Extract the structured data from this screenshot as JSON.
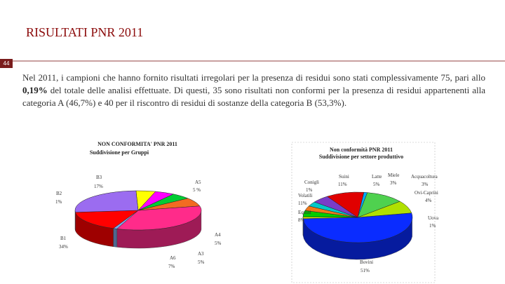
{
  "slide": {
    "title": "RISULTATI PNR 2011",
    "page_number": "44",
    "paragraph": {
      "part1": "Nel 2011, i campioni che hanno fornito risultati irregolari per la presenza di residui sono stati complessivamente 75, pari allo ",
      "highlight": "0,19%",
      "part2": " del totale delle analisi effettuate. Di questi, 35 sono risultati non conformi per la presenza di residui appartenenti alla categoria A (46,7%) e 40 per il riscontro di residui di sostanze della categoria B (53,3%)."
    }
  },
  "chart_data": [
    {
      "type": "pie",
      "title": "NON CONFORMITA' PNR 2011",
      "subtitle": "Suddivisione per Gruppi",
      "slices": [
        {
          "label": "A5",
          "value": 5,
          "display": "5 %",
          "color": "#ffff00"
        },
        {
          "label": "A4",
          "value": 5,
          "display": "5%",
          "color": "#ff00ff"
        },
        {
          "label": "A3",
          "value": 5,
          "display": "5%",
          "color": "#00cc33"
        },
        {
          "label": "A6",
          "value": 7,
          "display": "7%",
          "color": "#f26b21"
        },
        {
          "label": "B1",
          "value": 34,
          "display": "34%",
          "color": "#ff2b8a"
        },
        {
          "label": "B2",
          "value": 1,
          "display": "1%",
          "color": "#7ca6e8"
        },
        {
          "label": "B3",
          "value": 17,
          "display": "17%",
          "color": "#ff0000"
        },
        {
          "label": "",
          "value": 26,
          "display": "",
          "color": "#9b6cf0"
        }
      ]
    },
    {
      "type": "pie",
      "title": "Non conformità PNR 2011",
      "subtitle": "Suddivisione per settore produttivo",
      "slices": [
        {
          "label": "Bovini",
          "value": 51,
          "display": "51%",
          "color": "#0a2cff"
        },
        {
          "label": "Uova",
          "value": 1,
          "display": "1%",
          "color": "#ffff00"
        },
        {
          "label": "Ovi-Caprini",
          "value": 4,
          "display": "4%",
          "color": "#00cc00"
        },
        {
          "label": "Acquacoltura",
          "value": 3,
          "display": "3%",
          "color": "#f07a1a"
        },
        {
          "label": "Miele",
          "value": 3,
          "display": "3%",
          "color": "#00c8c8"
        },
        {
          "label": "Latte",
          "value": 5,
          "display": "5%",
          "color": "#7a3cc8"
        },
        {
          "label": "Suini",
          "value": 11,
          "display": "11%",
          "color": "#e00000"
        },
        {
          "label": "Conigli",
          "value": 1,
          "display": "1%",
          "color": "#00aaff"
        },
        {
          "label": "Volatili",
          "value": 11,
          "display": "11%",
          "color": "#4fd14f"
        },
        {
          "label": "Equini",
          "value": 8,
          "display": "8%",
          "color": "#b0e000"
        }
      ]
    }
  ]
}
